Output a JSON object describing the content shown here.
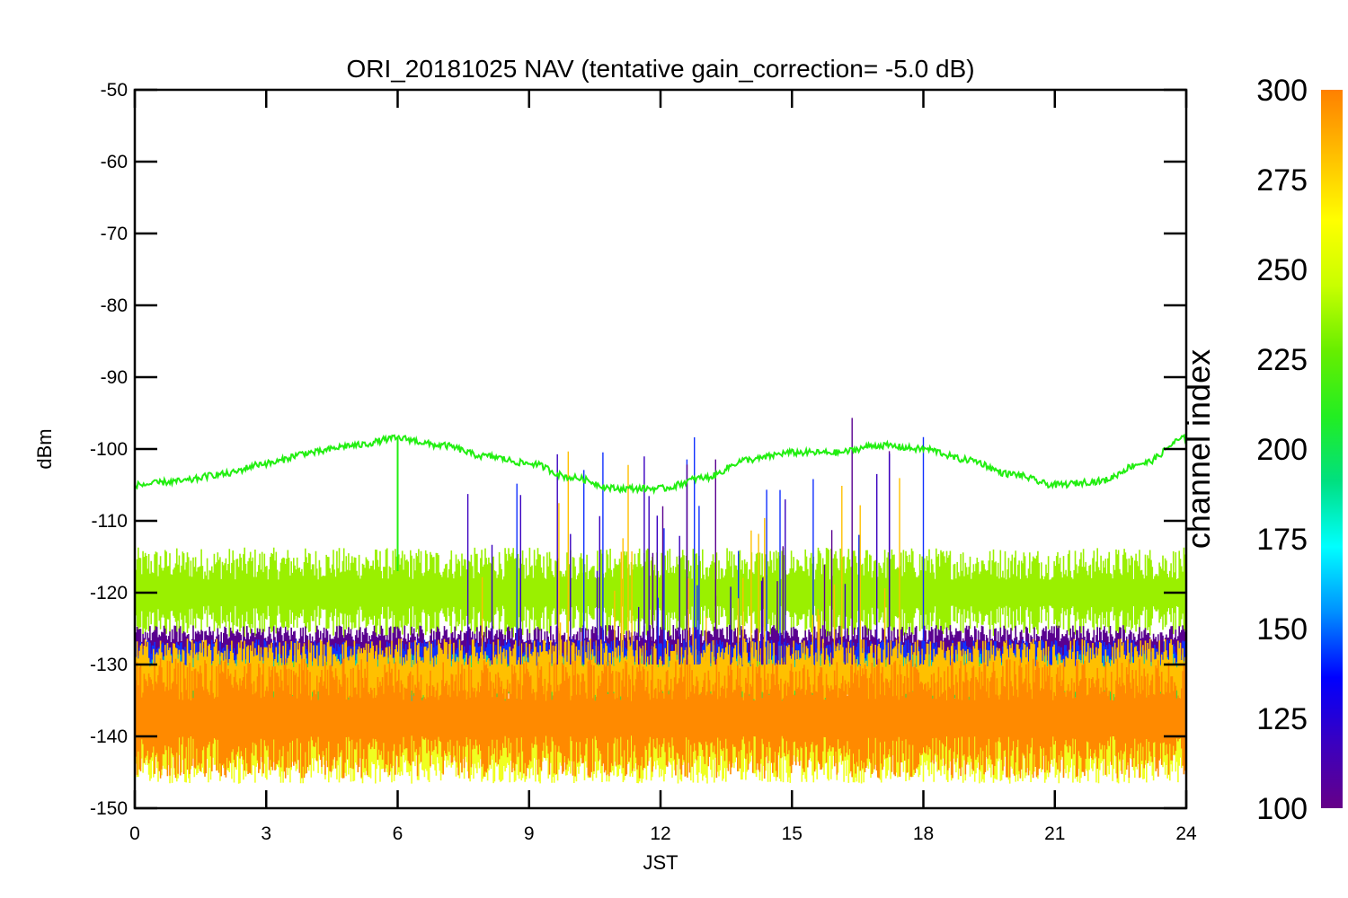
{
  "chart_data": {
    "type": "line",
    "title": "ORI_20181025 NAV (tentative gain_correction= -5.0 dB)",
    "xlabel": "JST",
    "ylabel": "dBm",
    "xlim": [
      0,
      24
    ],
    "ylim": [
      -150,
      -50
    ],
    "x_ticks": [
      "0",
      "3",
      "6",
      "9",
      "12",
      "15",
      "18",
      "21",
      "24"
    ],
    "y_ticks": [
      "-50",
      "-60",
      "-70",
      "-80",
      "-90",
      "-100",
      "-110",
      "-120",
      "-130",
      "-140",
      "-150"
    ],
    "grid": false,
    "colorbar": {
      "label": "channel index",
      "range": [
        100,
        300
      ],
      "ticks": [
        "300",
        "275",
        "250",
        "225",
        "200",
        "175",
        "150",
        "125",
        "100"
      ],
      "colors": [
        "#660088",
        "#3a00c0",
        "#0000ff",
        "#0090ff",
        "#00ffff",
        "#00e080",
        "#22ee22",
        "#66ee00",
        "#c8ff00",
        "#ffff00",
        "#ffbf00",
        "#ff8000"
      ]
    },
    "series": [
      {
        "channel_index": 240,
        "color": "#22ee11",
        "x": [
          0,
          1,
          2,
          3,
          4,
          5,
          6,
          7,
          8,
          9,
          10,
          11,
          12,
          13,
          14,
          15,
          16,
          17,
          18,
          19,
          20,
          21,
          22,
          23,
          24
        ],
        "y": [
          -105,
          -104.5,
          -103.5,
          -102,
          -100.5,
          -99.5,
          -98.5,
          -99.5,
          -101,
          -102,
          -104,
          -105.5,
          -105.5,
          -104,
          -101.5,
          -100.5,
          -100.5,
          -99.5,
          -100,
          -101.5,
          -103.5,
          -105,
          -104.5,
          -102,
          -98.5
        ]
      },
      {
        "channel_index": 260,
        "color": "#9af000",
        "band_center": -120,
        "band_spread": 4.5
      },
      {
        "channel_index": 110,
        "color": "#5a0090",
        "band_center": -128,
        "band_spread": 2.5
      },
      {
        "channel_index": 140,
        "color": "#1030ff",
        "band_center": -130,
        "band_spread": 2.5
      },
      {
        "channel_index": 185,
        "color": "#00c8c0",
        "band_center": -132,
        "band_spread": 2.5
      },
      {
        "channel_index": 225,
        "color": "#30e040",
        "band_center": -133,
        "band_spread": 2.5
      },
      {
        "channel_index": 285,
        "color": "#ffc000",
        "band_center": -132,
        "band_spread": 4
      },
      {
        "channel_index": 270,
        "color": "#f0ff20",
        "band_center": -141,
        "band_spread": 4
      },
      {
        "channel_index": 300,
        "color": "#ff8a00",
        "band_center": -137.5,
        "band_spread": 6
      }
    ]
  }
}
